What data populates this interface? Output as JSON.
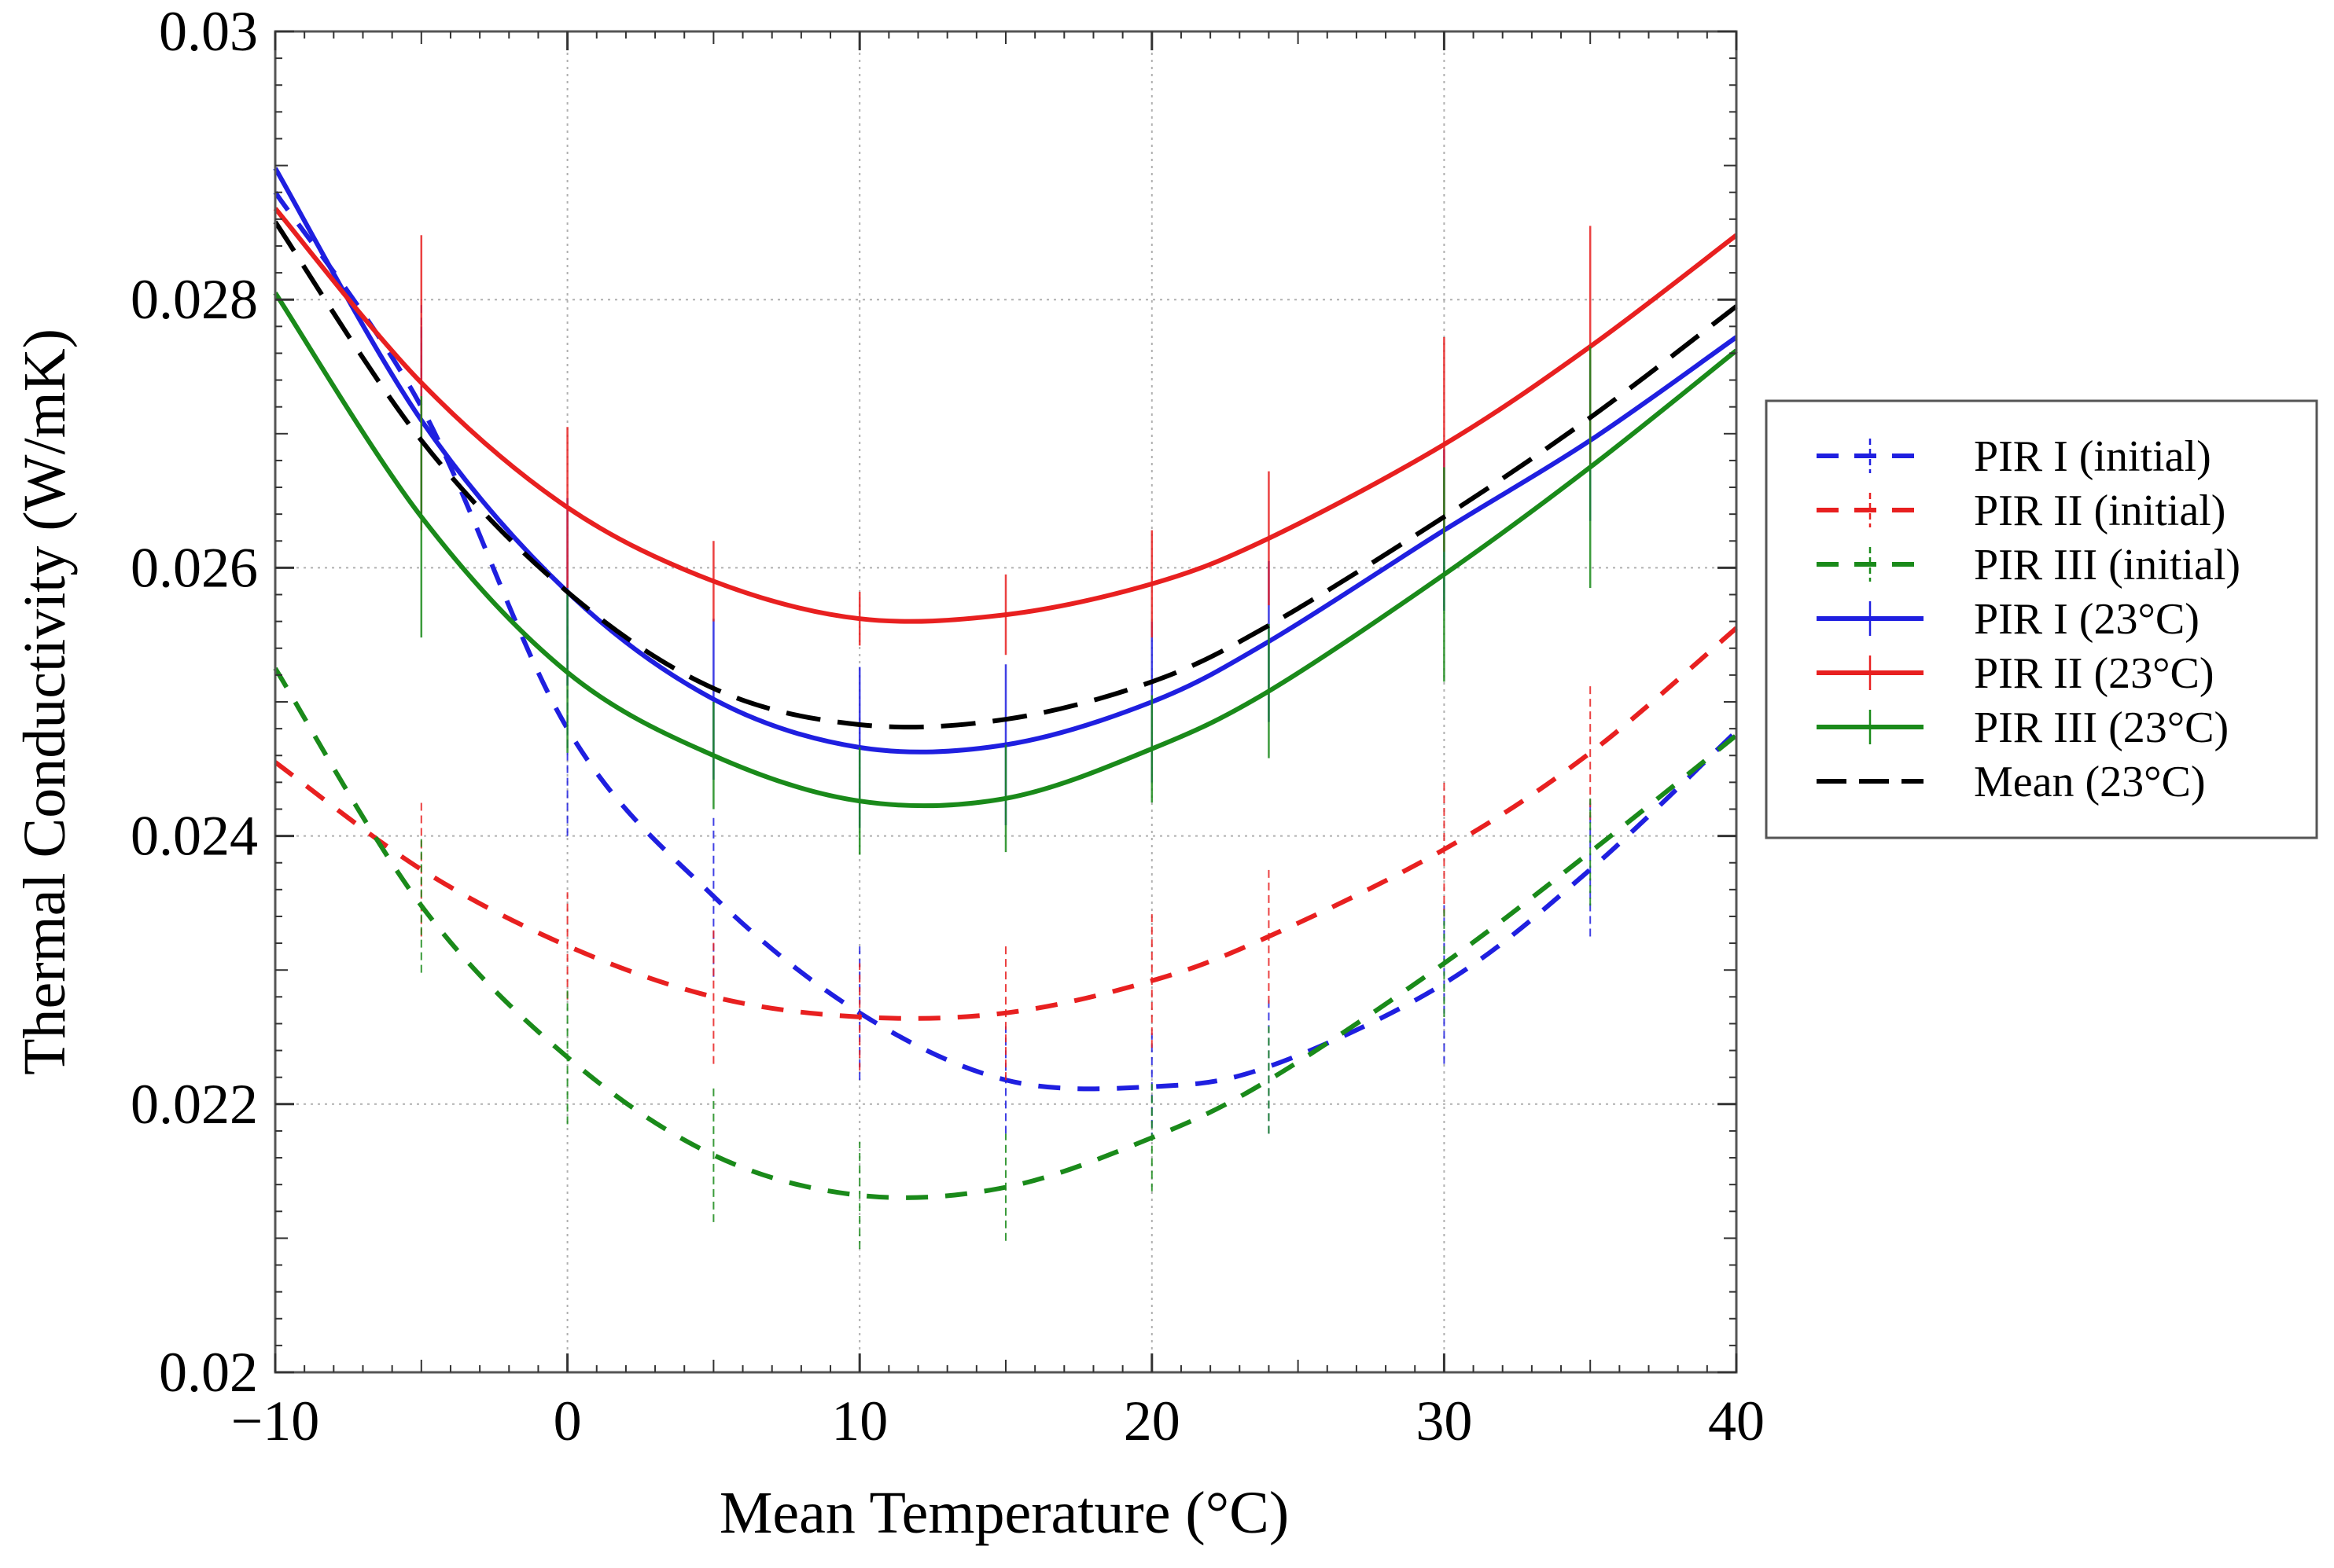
{
  "chart_data": {
    "type": "line",
    "xlabel": "Mean Temperature (°C)",
    "ylabel": "Thermal Conductivity (W/mK)",
    "xlim": [
      -10,
      40
    ],
    "ylim": [
      0.02,
      0.03
    ],
    "grid": true,
    "legend_position": "right-outside",
    "x_ticks": [
      -10,
      0,
      10,
      20,
      30,
      40
    ],
    "x_tick_labels": [
      "−10",
      "0",
      "10",
      "20",
      "30",
      "40"
    ],
    "y_ticks": [
      0.02,
      0.022,
      0.024,
      0.026,
      0.028,
      0.03
    ],
    "y_tick_labels": [
      "0.02",
      "0.022",
      "0.024",
      "0.026",
      "0.028",
      "0.03"
    ],
    "series": [
      {
        "name": "PIR I (initial)",
        "color": "#1f1fe0",
        "style": "dashed",
        "x": [
          -10,
          -5,
          0,
          5,
          10,
          15,
          20,
          24,
          30,
          35,
          40
        ],
        "y": [
          0.0288,
          0.0272,
          0.0248,
          0.02355,
          0.02268,
          0.02218,
          0.02213,
          0.02228,
          0.0229,
          0.02375,
          0.02478
        ],
        "err": [
          0.0009,
          0.0008,
          0.0008,
          0.0006,
          0.0005,
          0.0004,
          0.0004,
          0.0005,
          0.0006,
          0.0005,
          0.0006
        ]
      },
      {
        "name": "PIR II (initial)",
        "color": "#e82020",
        "style": "dashed",
        "x": [
          -10,
          -5,
          0,
          5,
          10,
          15,
          20,
          24,
          30,
          35,
          40
        ],
        "y": [
          0.02455,
          0.02375,
          0.02318,
          0.0228,
          0.02265,
          0.02268,
          0.02292,
          0.02325,
          0.0239,
          0.02462,
          0.02555
        ],
        "err": [
          0.0006,
          0.0005,
          0.0004,
          0.0005,
          0.0004,
          0.0005,
          0.0005,
          0.0005,
          0.0005,
          0.0005,
          0.0005
        ]
      },
      {
        "name": "PIR III (initial)",
        "color": "#1a8a1a",
        "style": "dashed",
        "x": [
          -10,
          -5,
          0,
          5,
          10,
          15,
          20,
          24,
          30,
          35,
          40
        ],
        "y": [
          0.02525,
          0.02348,
          0.02235,
          0.02162,
          0.02132,
          0.02138,
          0.02175,
          0.02218,
          0.02305,
          0.02388,
          0.02475
        ],
        "err": [
          0.0006,
          0.0005,
          0.0005,
          0.0005,
          0.0004,
          0.0004,
          0.0004,
          0.0004,
          0.0004,
          0.0004,
          0.0004
        ]
      },
      {
        "name": "PIR I (23°C)",
        "color": "#1f1fe0",
        "style": "solid",
        "x": [
          -10,
          -5,
          0,
          5,
          10,
          15,
          20,
          24,
          30,
          35,
          40
        ],
        "y": [
          0.02898,
          0.0271,
          0.02582,
          0.02502,
          0.02466,
          0.02468,
          0.025,
          0.02545,
          0.02628,
          0.02695,
          0.02772
        ],
        "err": [
          0.0009,
          0.0007,
          0.0007,
          0.0006,
          0.0006,
          0.0006,
          0.0006,
          0.0006,
          0.0006,
          0.0006,
          0.0006
        ]
      },
      {
        "name": "PIR II (23°C)",
        "color": "#e82020",
        "style": "solid",
        "x": [
          -10,
          -5,
          0,
          5,
          10,
          15,
          20,
          24,
          30,
          35,
          40
        ],
        "y": [
          0.02868,
          0.02738,
          0.02645,
          0.0259,
          0.02562,
          0.02565,
          0.02588,
          0.02622,
          0.02692,
          0.02765,
          0.02848
        ],
        "err": [
          0.0012,
          0.0011,
          0.0006,
          0.0003,
          0.0002,
          0.0003,
          0.0004,
          0.0005,
          0.0008,
          0.0009,
          0.001
        ]
      },
      {
        "name": "PIR III (23°C)",
        "color": "#1a8a1a",
        "style": "solid",
        "x": [
          -10,
          -5,
          0,
          5,
          10,
          15,
          20,
          24,
          30,
          35,
          40
        ],
        "y": [
          0.02805,
          0.02638,
          0.02522,
          0.0246,
          0.02426,
          0.02428,
          0.02465,
          0.02508,
          0.02595,
          0.02675,
          0.02762
        ],
        "err": [
          0.0015,
          0.0009,
          0.0006,
          0.0004,
          0.0004,
          0.0004,
          0.0004,
          0.0005,
          0.0008,
          0.0009,
          0.001
        ]
      },
      {
        "name": "Mean (23°C)",
        "color": "#000000",
        "style": "longdash",
        "x": [
          -10,
          -5,
          0,
          5,
          10,
          15,
          20,
          24,
          30,
          35,
          40
        ],
        "y": [
          0.02858,
          0.02695,
          0.02582,
          0.0251,
          0.02483,
          0.02487,
          0.02515,
          0.02557,
          0.02638,
          0.02712,
          0.02795
        ],
        "err": []
      }
    ]
  }
}
